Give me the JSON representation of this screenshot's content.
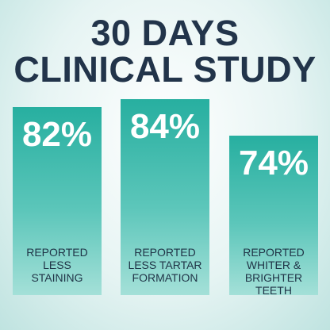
{
  "chart_data": {
    "type": "bar",
    "title": [
      "30 DAYS",
      "CLINICAL STUDY"
    ],
    "categories": [
      "REPORTED LESS STAINING",
      "REPORTED LESS TARTAR FORMATION",
      "REPORTED WHITER & BRIGHTER TEETH"
    ],
    "values": [
      82,
      84,
      74
    ],
    "value_labels": [
      "82%",
      "84%",
      "74%"
    ],
    "ylim": [
      30,
      90
    ]
  }
}
